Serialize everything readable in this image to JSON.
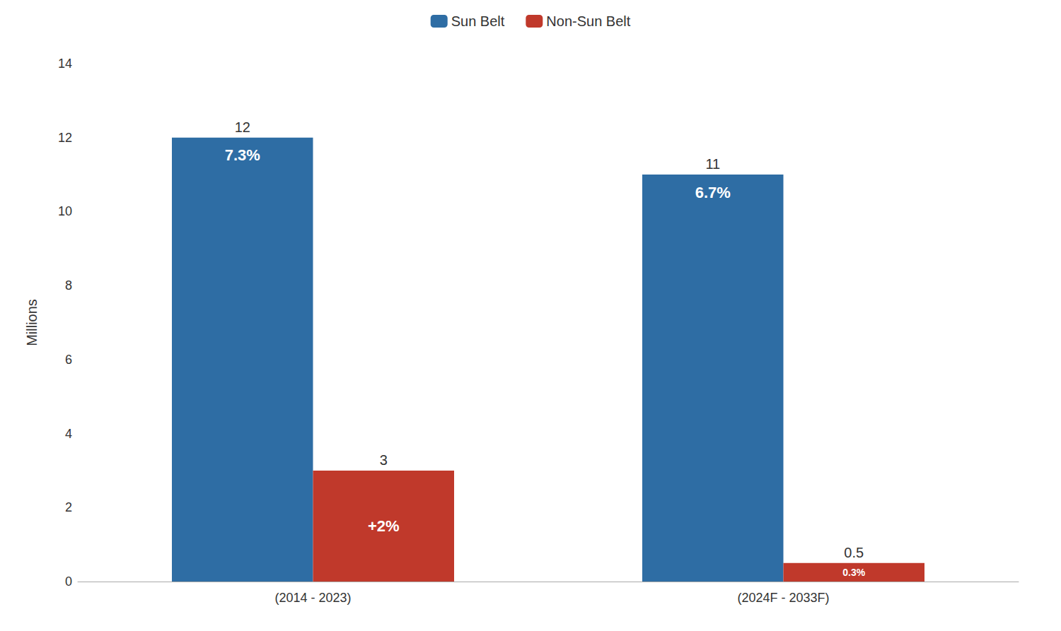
{
  "chart_data": {
    "type": "bar",
    "categories": [
      "(2014 - 2023)",
      "(2024F - 2033F)"
    ],
    "series": [
      {
        "name": "Sun Belt",
        "color": "#2E6DA4",
        "values": [
          12,
          11
        ],
        "annotations": [
          "7.3%",
          "6.7%"
        ]
      },
      {
        "name": "Non-Sun Belt",
        "color": "#C0392B",
        "values": [
          3,
          0.5
        ],
        "annotations": [
          "+2%",
          "0.3%"
        ]
      }
    ],
    "ylabel": "Millions",
    "ylim": [
      0,
      14
    ],
    "yticks": [
      0,
      2,
      4,
      6,
      8,
      10,
      12,
      14
    ],
    "grid": false,
    "legend": "top",
    "data_labels": true
  }
}
